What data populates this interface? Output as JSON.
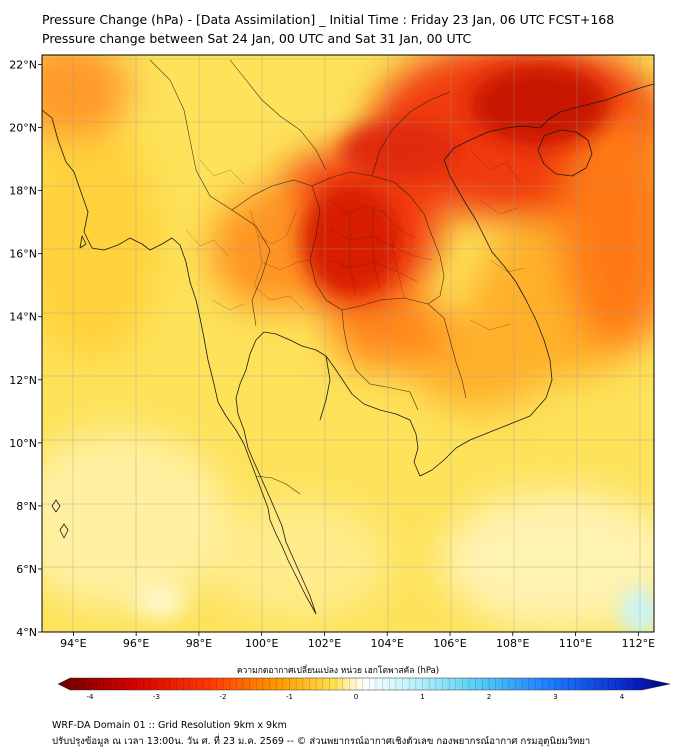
{
  "header": {
    "title_line1": "Pressure Change (hPa) - [Data Assimilation] _ Initial Time : Friday 23 Jan, 06 UTC FCST+168",
    "title_line2": "Pressure change between Sat 24 Jan, 00 UTC and Sat 31 Jan, 00 UTC"
  },
  "map": {
    "lat_ticks": [
      {
        "value": 22,
        "label": "22°N"
      },
      {
        "value": 20,
        "label": "20°N"
      },
      {
        "value": 18,
        "label": "18°N"
      },
      {
        "value": 16,
        "label": "16°N"
      },
      {
        "value": 14,
        "label": "14°N"
      },
      {
        "value": 12,
        "label": "12°N"
      },
      {
        "value": 10,
        "label": "10°N"
      },
      {
        "value": 8,
        "label": "8°N"
      },
      {
        "value": 6,
        "label": "6°N"
      },
      {
        "value": 4,
        "label": "4°N"
      }
    ],
    "lon_ticks": [
      {
        "value": 94,
        "label": "94°E"
      },
      {
        "value": 96,
        "label": "96°E"
      },
      {
        "value": 98,
        "label": "98°E"
      },
      {
        "value": 100,
        "label": "100°E"
      },
      {
        "value": 102,
        "label": "102°E"
      },
      {
        "value": 104,
        "label": "104°E"
      },
      {
        "value": 106,
        "label": "106°E"
      },
      {
        "value": 108,
        "label": "108°E"
      },
      {
        "value": 110,
        "label": "110°E"
      },
      {
        "value": 112,
        "label": "112°E"
      }
    ],
    "lon_range": [
      93,
      112.5
    ],
    "lat_range": [
      4,
      22.3
    ],
    "colors": {
      "background_field": "#fde25a",
      "land_lines": "#1a1a1a",
      "grid_lines": "#9a9a9a"
    }
  },
  "colorbar": {
    "title": "ความกดอากาศเปลี่ยนแปลง หน่วย เฮกโตพาสคัล (hPa)",
    "ticks": [
      {
        "value": -4,
        "label": "-4"
      },
      {
        "value": -3,
        "label": "-3"
      },
      {
        "value": -2,
        "label": "-2"
      },
      {
        "value": -1,
        "label": "-1"
      },
      {
        "value": 0,
        "label": "0"
      },
      {
        "value": 1,
        "label": "1"
      },
      {
        "value": 2,
        "label": "2"
      },
      {
        "value": 3,
        "label": "3"
      },
      {
        "value": 4,
        "label": "4"
      }
    ],
    "range": [
      -4.3,
      4.3
    ],
    "colors": {
      "min": "#6b0000",
      "strong_neg": "#e60000",
      "mid_neg": "#ff8c00",
      "weak_neg": "#ffe14d",
      "zero": "#ffffff",
      "weak_pos": "#8ee8f8",
      "mid_pos": "#1e90ff",
      "max": "#000080"
    }
  },
  "footer": {
    "line1": "WRF-DA Domain 01 :: Grid Resolution 9km x 9km",
    "line2": "ปรับปรุงข้อมูล ณ เวลา 13:00น. วัน ศ. ที่ 23 ม.ค. 2569 -- © ส่วนพยากรณ์อากาศเชิงตัวเลข กองพยากรณ์อากาศ กรมอุตุนิยมวิทยา"
  }
}
